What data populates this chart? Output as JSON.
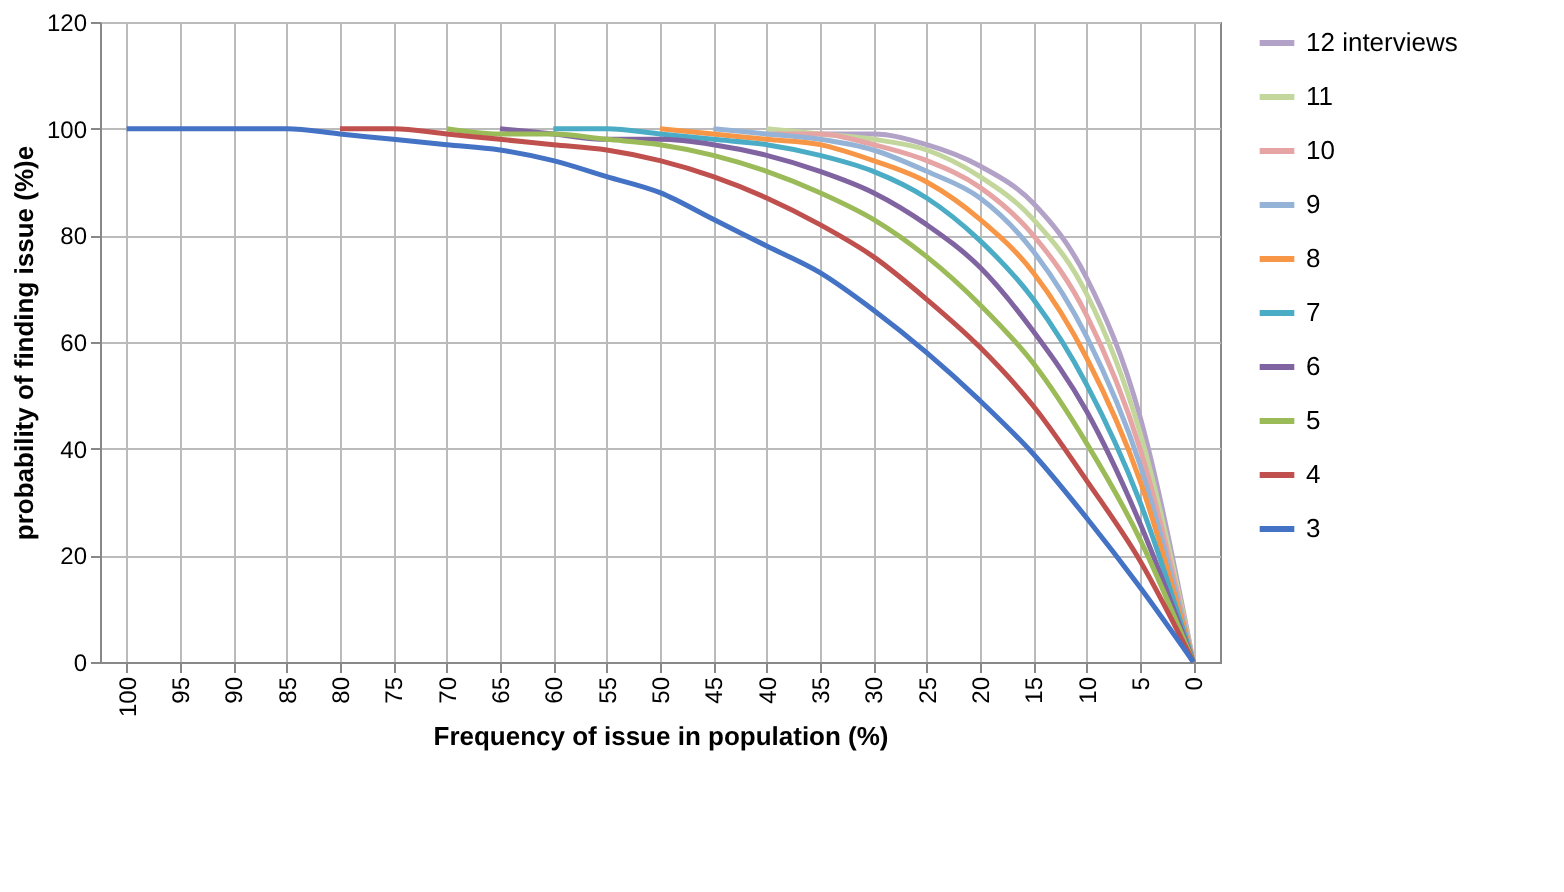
{
  "chart_data": {
    "type": "line",
    "xlabel": "Frequency of issue in population (%)",
    "ylabel": "probability of finding issue (%)e",
    "categories": [
      "100",
      "95",
      "90",
      "85",
      "80",
      "75",
      "70",
      "65",
      "60",
      "55",
      "50",
      "45",
      "40",
      "35",
      "30",
      "25",
      "20",
      "15",
      "10",
      "5",
      "0"
    ],
    "ylim": [
      0,
      120
    ],
    "yticks": [
      0,
      20,
      40,
      60,
      80,
      100,
      120
    ],
    "grid": true,
    "legend": "right",
    "series": [
      {
        "name": "3",
        "color": "#4472c4",
        "values": [
          100,
          100,
          100,
          100,
          99,
          98,
          97,
          96,
          94,
          91,
          88,
          83,
          78,
          73,
          66,
          58,
          49,
          39,
          27,
          14,
          0
        ]
      },
      {
        "name": "4",
        "color": "#c0504d",
        "values": [
          null,
          null,
          null,
          null,
          100,
          100,
          99,
          98,
          97,
          96,
          94,
          91,
          87,
          82,
          76,
          68,
          59,
          48,
          34,
          19,
          0
        ]
      },
      {
        "name": "5",
        "color": "#9bbb59",
        "values": [
          null,
          null,
          null,
          null,
          null,
          null,
          100,
          99,
          99,
          98,
          97,
          95,
          92,
          88,
          83,
          76,
          67,
          56,
          41,
          23,
          0
        ]
      },
      {
        "name": "6",
        "color": "#8064a2",
        "values": [
          null,
          null,
          null,
          null,
          null,
          null,
          null,
          100,
          99,
          98,
          98,
          97,
          95,
          92,
          88,
          82,
          74,
          62,
          47,
          26,
          0
        ]
      },
      {
        "name": "7",
        "color": "#4bacc6",
        "values": [
          null,
          null,
          null,
          null,
          null,
          null,
          null,
          null,
          100,
          100,
          99,
          98,
          97,
          95,
          92,
          87,
          79,
          68,
          52,
          30,
          0
        ]
      },
      {
        "name": "8",
        "color": "#f79646",
        "values": [
          null,
          null,
          null,
          null,
          null,
          null,
          null,
          null,
          null,
          null,
          100,
          99,
          98,
          97,
          94,
          90,
          83,
          73,
          57,
          34,
          0
        ]
      },
      {
        "name": "9",
        "color": "#95b3d7",
        "values": [
          null,
          null,
          null,
          null,
          null,
          null,
          null,
          null,
          null,
          null,
          null,
          100,
          99,
          98,
          96,
          92,
          87,
          77,
          61,
          37,
          0
        ]
      },
      {
        "name": "10",
        "color": "#e6a5a4",
        "values": [
          null,
          null,
          null,
          null,
          null,
          null,
          null,
          null,
          null,
          null,
          null,
          null,
          99,
          99,
          97,
          94,
          89,
          80,
          65,
          40,
          0
        ]
      },
      {
        "name": "11",
        "color": "#c3d69b",
        "values": [
          null,
          null,
          null,
          null,
          null,
          null,
          null,
          null,
          null,
          null,
          null,
          null,
          100,
          99,
          98,
          96,
          91,
          83,
          69,
          43,
          0
        ]
      },
      {
        "name": "12 interviews",
        "color": "#b3a2c7",
        "values": [
          null,
          null,
          null,
          null,
          null,
          null,
          null,
          null,
          null,
          null,
          null,
          null,
          null,
          99,
          99,
          97,
          93,
          86,
          72,
          46,
          0
        ]
      }
    ]
  }
}
